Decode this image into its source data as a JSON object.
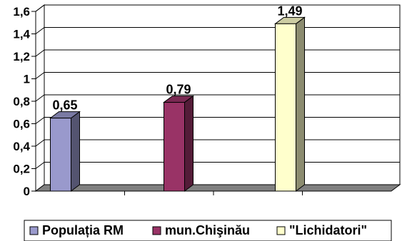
{
  "chart_data": {
    "type": "bar",
    "style": "3d-column",
    "categories": [
      "Populația RM",
      "mun.Chişinău",
      "\"Lichidatori\""
    ],
    "values": [
      0.65,
      0.79,
      1.49
    ],
    "data_labels": [
      "0,65",
      "0,79",
      "1,49"
    ],
    "y_ticks": [
      "0",
      "0,2",
      "0,4",
      "0,6",
      "0,8",
      "1",
      "1,2",
      "1,4",
      "1,6"
    ],
    "ylim": [
      0,
      1.6
    ],
    "title": "",
    "xlabel": "",
    "ylabel": "",
    "grid": true,
    "legend_position": "bottom",
    "colors": {
      "bars": [
        "#9999cc",
        "#993366",
        "#ffffcc"
      ],
      "floor": "#808080",
      "wall": "#ffffff",
      "grid": "#000000"
    }
  }
}
